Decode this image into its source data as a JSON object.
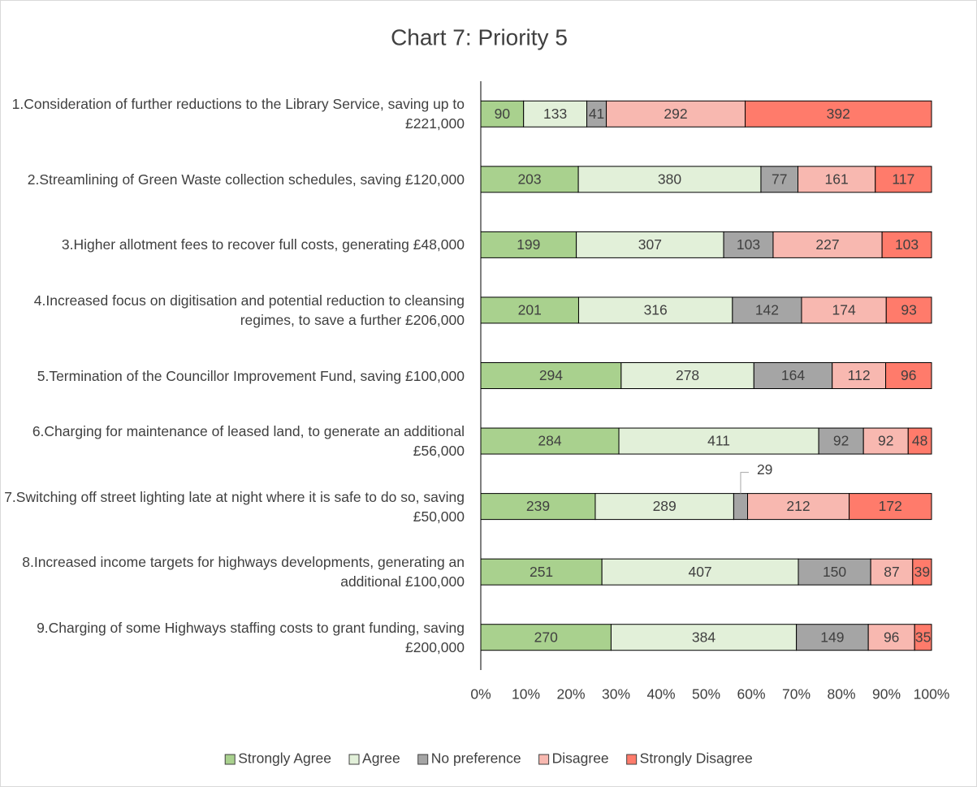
{
  "chart_data": {
    "type": "stacked_bar_percent",
    "orientation": "horizontal",
    "title": "Chart 7: Priority 5",
    "categories": [
      "1.Consideration of further reductions to the Library Service, saving up to £221,000",
      "2.Streamlining of Green Waste collection schedules, saving £120,000",
      "3.Higher allotment fees to recover full costs, generating £48,000",
      "4.Increased focus on digitisation and potential reduction to cleansing regimes, to save a further £206,000",
      "5.Termination of the Councillor Improvement Fund, saving £100,000",
      "6.Charging for maintenance of leased land, to generate an additional £56,000",
      "7.Switching off street lighting late at night where it is safe to do so, saving £50,000",
      "8.Increased income targets for highways developments, generating an additional £100,000",
      "9.Charging of some Highways staffing costs to grant funding, saving £200,000"
    ],
    "series": [
      {
        "name": "Strongly Agree",
        "color": "#a9d18e",
        "values": [
          90,
          203,
          199,
          201,
          294,
          284,
          239,
          251,
          270
        ]
      },
      {
        "name": "Agree",
        "color": "#e2f0d9",
        "values": [
          133,
          380,
          307,
          316,
          278,
          411,
          289,
          407,
          384
        ]
      },
      {
        "name": "No preference",
        "color": "#a5a5a5",
        "values": [
          41,
          77,
          103,
          142,
          164,
          92,
          29,
          150,
          149
        ]
      },
      {
        "name": "Disagree",
        "color": "#f8b8b0",
        "values": [
          292,
          161,
          227,
          174,
          112,
          92,
          212,
          87,
          96
        ]
      },
      {
        "name": "Strongly Disagree",
        "color": "#ff7b6b",
        "values": [
          392,
          117,
          103,
          93,
          96,
          48,
          172,
          39,
          35
        ]
      }
    ],
    "xlim": [
      0,
      100
    ],
    "xticks": [
      {
        "value": 0,
        "label": "0%"
      },
      {
        "value": 10,
        "label": "10%"
      },
      {
        "value": 20,
        "label": "20%"
      },
      {
        "value": 30,
        "label": "30%"
      },
      {
        "value": 40,
        "label": "40%"
      },
      {
        "value": 50,
        "label": "50%"
      },
      {
        "value": 60,
        "label": "60%"
      },
      {
        "value": 70,
        "label": "70%"
      },
      {
        "value": 80,
        "label": "80%"
      },
      {
        "value": 90,
        "label": "90%"
      },
      {
        "value": 100,
        "label": "100%"
      }
    ],
    "legend": "bottom"
  }
}
